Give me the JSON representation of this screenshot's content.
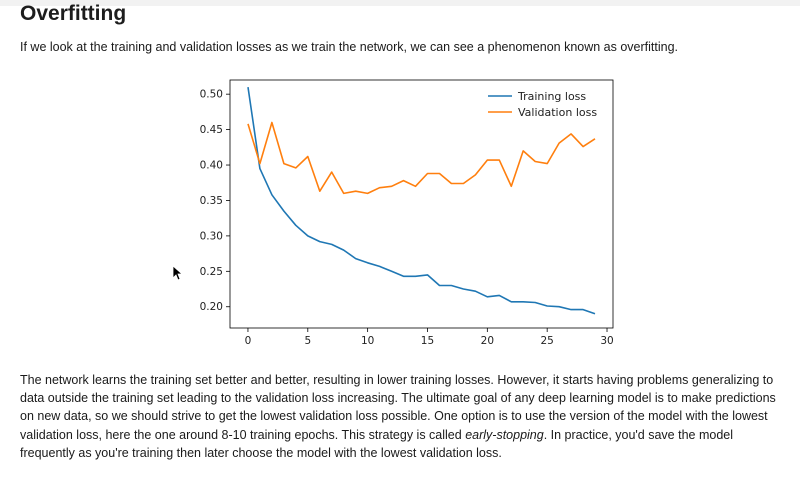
{
  "section": {
    "title": "Overfitting",
    "intro": "If we look at the training and validation losses as we train the network, we can see a phenomenon known as overfitting."
  },
  "body": {
    "part1": "The network learns the training set better and better, resulting in lower training losses. However, it starts having problems generalizing to data outside the training set leading to the validation loss increasing. The ultimate goal of any deep learning model is to make predictions on new data, so we should strive to get the lowest validation loss possible. One option is to use the version of the model with the lowest validation loss, here the one around 8-10 training epochs. This strategy is called ",
    "emphasis": "early-stopping",
    "part2": ". In practice, you'd save the model frequently as you're training then later choose the model with the lowest validation loss."
  },
  "chart_data": {
    "type": "line",
    "title": "",
    "xlabel": "",
    "ylabel": "",
    "xlim": [
      -1.5,
      30.5
    ],
    "ylim": [
      0.17,
      0.52
    ],
    "xticks": [
      0,
      5,
      10,
      15,
      20,
      25,
      30
    ],
    "yticks": [
      0.2,
      0.25,
      0.3,
      0.35,
      0.4,
      0.45,
      0.5
    ],
    "xtick_labels": [
      "0",
      "5",
      "10",
      "15",
      "20",
      "25",
      "30"
    ],
    "ytick_labels": [
      "0.20",
      "0.25",
      "0.30",
      "0.35",
      "0.40",
      "0.45",
      "0.50"
    ],
    "grid": false,
    "legend_position": "top-right",
    "x": [
      0,
      1,
      2,
      3,
      4,
      5,
      6,
      7,
      8,
      9,
      10,
      11,
      12,
      13,
      14,
      15,
      16,
      17,
      18,
      19,
      20,
      21,
      22,
      23,
      24,
      25,
      26,
      27,
      28,
      29
    ],
    "series": [
      {
        "name": "Training loss",
        "color": "#1f77b4",
        "values": [
          0.51,
          0.395,
          0.358,
          0.335,
          0.315,
          0.3,
          0.292,
          0.288,
          0.28,
          0.268,
          0.262,
          0.257,
          0.25,
          0.243,
          0.243,
          0.245,
          0.23,
          0.23,
          0.225,
          0.222,
          0.214,
          0.216,
          0.207,
          0.207,
          0.206,
          0.201,
          0.2,
          0.196,
          0.196,
          0.19
        ]
      },
      {
        "name": "Validation loss",
        "color": "#ff7f0e",
        "values": [
          0.458,
          0.402,
          0.46,
          0.402,
          0.396,
          0.412,
          0.363,
          0.39,
          0.36,
          0.363,
          0.36,
          0.368,
          0.37,
          0.378,
          0.37,
          0.388,
          0.388,
          0.374,
          0.374,
          0.386,
          0.407,
          0.407,
          0.37,
          0.42,
          0.405,
          0.402,
          0.431,
          0.444,
          0.426,
          0.437
        ]
      }
    ]
  }
}
